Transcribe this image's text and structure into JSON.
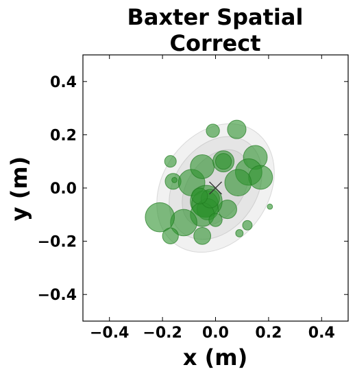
{
  "chart_data": {
    "type": "scatter",
    "title_lines": [
      "Baxter Spatial",
      "Correct"
    ],
    "xlabel": "x (m)",
    "ylabel": "y (m)",
    "xlim": [
      -0.5,
      0.5
    ],
    "ylim": [
      -0.5,
      0.5
    ],
    "xticks": [
      -0.4,
      -0.2,
      0.0,
      0.2,
      0.4
    ],
    "xtick_labels": [
      "−0.4",
      "−0.2",
      "0.0",
      "0.2",
      "0.4"
    ],
    "yticks": [
      0.4,
      0.2,
      0.0,
      -0.2,
      -0.4
    ],
    "ytick_labels": [
      "0.4",
      "0.2",
      "0.0",
      "−0.2",
      "−0.4"
    ],
    "grid": false,
    "center_marker": {
      "x": 0.0,
      "y": 0.0,
      "marker": "x"
    },
    "ellipses": [
      {
        "cx": 0.0,
        "cy": 0.0,
        "rx": 0.26,
        "ry": 0.2,
        "angle_deg": 55
      },
      {
        "cx": 0.0,
        "cy": 0.0,
        "rx": 0.21,
        "ry": 0.155,
        "angle_deg": 55
      },
      {
        "cx": 0.0,
        "cy": 0.0,
        "rx": 0.16,
        "ry": 0.105,
        "angle_deg": 55
      }
    ],
    "points": [
      {
        "x": 0.08,
        "y": 0.22,
        "r": 0.035
      },
      {
        "x": -0.01,
        "y": 0.215,
        "r": 0.025
      },
      {
        "x": -0.17,
        "y": 0.1,
        "r": 0.022
      },
      {
        "x": -0.16,
        "y": 0.025,
        "r": 0.03
      },
      {
        "x": -0.155,
        "y": 0.03,
        "r": 0.01
      },
      {
        "x": -0.09,
        "y": 0.02,
        "r": 0.05
      },
      {
        "x": -0.05,
        "y": 0.08,
        "r": 0.045
      },
      {
        "x": 0.03,
        "y": 0.1,
        "r": 0.04
      },
      {
        "x": 0.03,
        "y": 0.1,
        "r": 0.03
      },
      {
        "x": 0.15,
        "y": 0.115,
        "r": 0.045
      },
      {
        "x": 0.125,
        "y": 0.06,
        "r": 0.05
      },
      {
        "x": 0.17,
        "y": 0.04,
        "r": 0.045
      },
      {
        "x": 0.085,
        "y": 0.02,
        "r": 0.05
      },
      {
        "x": 0.205,
        "y": -0.07,
        "r": 0.01
      },
      {
        "x": 0.12,
        "y": -0.14,
        "r": 0.018
      },
      {
        "x": 0.09,
        "y": -0.17,
        "r": 0.014
      },
      {
        "x": 0.045,
        "y": -0.08,
        "r": 0.035
      },
      {
        "x": -0.035,
        "y": -0.05,
        "r": 0.06
      },
      {
        "x": -0.04,
        "y": -0.06,
        "r": 0.05
      },
      {
        "x": -0.03,
        "y": -0.08,
        "r": 0.04
      },
      {
        "x": -0.05,
        "y": -0.1,
        "r": 0.045
      },
      {
        "x": -0.02,
        "y": -0.04,
        "r": 0.035
      },
      {
        "x": -0.06,
        "y": -0.03,
        "r": 0.03
      },
      {
        "x": -0.12,
        "y": -0.13,
        "r": 0.05
      },
      {
        "x": -0.21,
        "y": -0.11,
        "r": 0.055
      },
      {
        "x": -0.17,
        "y": -0.18,
        "r": 0.03
      },
      {
        "x": -0.05,
        "y": -0.18,
        "r": 0.032
      },
      {
        "x": 0.0,
        "y": -0.12,
        "r": 0.025
      }
    ],
    "colors": {
      "point_fill": "#2e922e",
      "point_stroke": "#1f7a1f",
      "ellipse_fill": "#9e9e9e",
      "axes": "#000000"
    }
  }
}
